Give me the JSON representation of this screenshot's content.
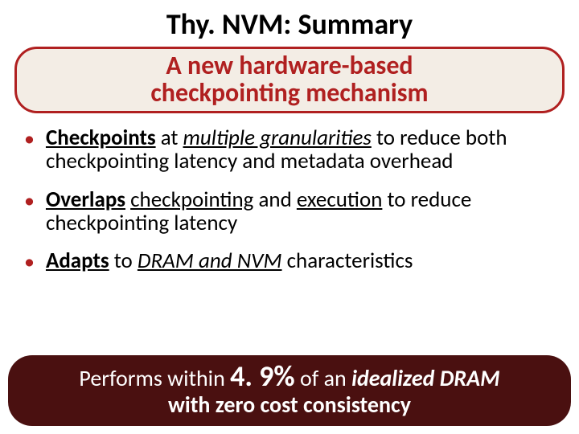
{
  "title": "Thy. NVM: Summary",
  "headline": {
    "top": "A new hardware-based",
    "bot": "checkpointing mechanism"
  },
  "bullets": {
    "b1": {
      "p1": "Checkpoints",
      "p2": " at ",
      "p3": "multiple granularities",
      "p4": " to reduce both checkpointing latency and metadata overhead"
    },
    "b2": {
      "p1": "Overlaps",
      "p2": " ",
      "p3": "checkpointing",
      "p4": " and ",
      "p5": "execution",
      "p6": " to reduce checkpointing latency"
    },
    "b3": {
      "p1": "Adapts",
      "p2": " to ",
      "p3": "DRAM and NVM",
      "p4": " characteristics"
    }
  },
  "bottom": {
    "l1a": "Performs within ",
    "pct": "4. 9%",
    "l1b": " of an ",
    "l1c": "idealized DRAM",
    "l2": "with zero cost consistency"
  },
  "colors": {
    "accent": "#b02020",
    "headline_bg": "#f3ede5",
    "bottom_bg": "#4a1010",
    "text": "#000000",
    "bottom_text": "#ffffff"
  }
}
